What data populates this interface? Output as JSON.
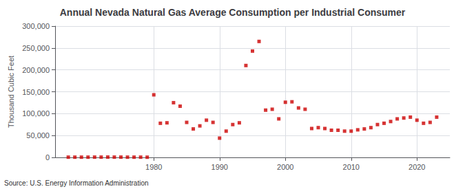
{
  "chart_data": {
    "type": "scatter",
    "title": "Annual Nevada Natural Gas Average Consumption per Industrial Consumer",
    "ylabel": "Thousand Cubic Feet",
    "annotation": "Source: U.S. Energy Information Administration",
    "color": "#cc0000",
    "marker": "square",
    "x": [
      1967,
      1968,
      1969,
      1970,
      1971,
      1972,
      1973,
      1974,
      1975,
      1976,
      1977,
      1978,
      1979,
      1980,
      1981,
      1982,
      1983,
      1984,
      1985,
      1986,
      1987,
      1988,
      1989,
      1990,
      1991,
      1992,
      1993,
      1994,
      1995,
      1996,
      1997,
      1998,
      1999,
      2000,
      2001,
      2002,
      2003,
      2004,
      2005,
      2006,
      2007,
      2008,
      2009,
      2010,
      2011,
      2012,
      2013,
      2014,
      2015,
      2016,
      2017,
      2018,
      2019,
      2020,
      2021,
      2022,
      2023
    ],
    "values": [
      500,
      500,
      500,
      500,
      600,
      600,
      700,
      600,
      600,
      500,
      500,
      500,
      400,
      143000,
      78000,
      79000,
      125000,
      117000,
      80000,
      65000,
      72000,
      85000,
      80000,
      44000,
      60000,
      75000,
      79000,
      210000,
      243000,
      265000,
      108000,
      110000,
      88000,
      126000,
      127000,
      113000,
      110000,
      66000,
      68000,
      66000,
      62000,
      62000,
      60000,
      60000,
      63000,
      65000,
      68000,
      75000,
      78000,
      82000,
      88000,
      90000,
      92000,
      85000,
      78000,
      80000,
      92000
    ],
    "xlim": [
      1965,
      2025
    ],
    "xticks": [
      1980,
      1990,
      2000,
      2010,
      2020
    ],
    "ylim": [
      0,
      300000
    ],
    "yticks": [
      0,
      {
        "value": 50000,
        "label": "50,000"
      },
      {
        "value": 100000,
        "label": "100,000"
      },
      {
        "value": 150000,
        "label": "150,000"
      },
      {
        "value": 200000,
        "label": "200,000"
      },
      {
        "value": 250000,
        "label": "250,000"
      },
      {
        "value": 300000,
        "label": "300,000"
      }
    ],
    "grid": true
  }
}
